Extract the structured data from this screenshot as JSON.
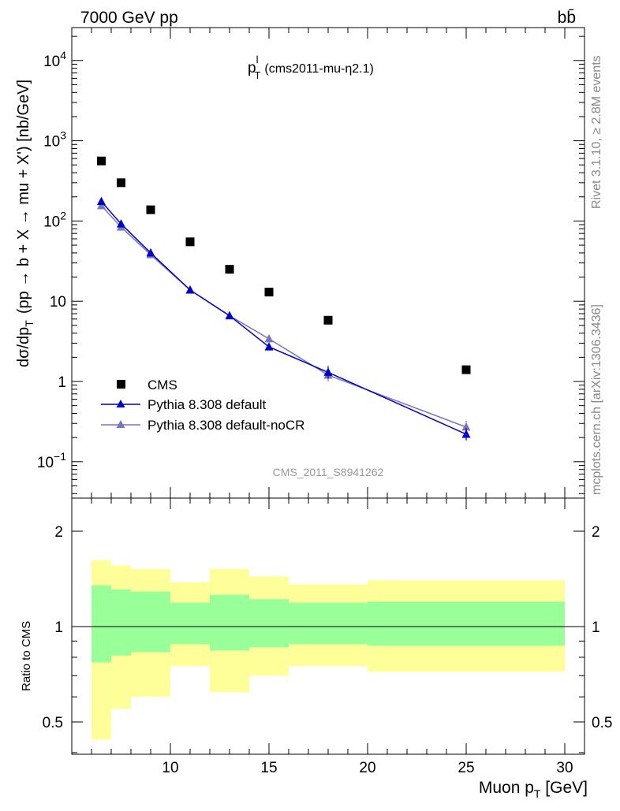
{
  "header": {
    "left": "7000 GeV pp",
    "right": "bb̄"
  },
  "side": {
    "rivet": "Rivet 3.1.10, ≥ 2.8M events",
    "mcplots": "mcplots.cern.ch [arXiv:1306.3436]"
  },
  "main_plot": {
    "title_base": "p",
    "title_sup": "l",
    "title_sub": "T",
    "title_paren": "(cms2011-mu-η2.1)",
    "ylabel_pre": "dσ/dp",
    "ylabel_sub": "T",
    "ylabel_post": "(pp → b + X → mu + X') [nb/GeV]",
    "analysis_id": "CMS_2011_S8941262"
  },
  "ratio_plot": {
    "ylabel": "Ratio to CMS"
  },
  "xlabel": {
    "pre": "Muon p",
    "sub": "T",
    "post": " [GeV]"
  },
  "legend": {
    "cms": "CMS",
    "default": "Pythia 8.308 default",
    "nocr": "Pythia 8.308 default-noCR"
  },
  "colors": {
    "data": "#000000",
    "default": "#0000cc",
    "nocr": "#7777bb",
    "band_inner": "#99ff99",
    "band_outer": "#ffff99",
    "analysis_text": "#999999"
  },
  "chart_data": [
    {
      "type": "scatter",
      "title": "p_T^l (cms2011-mu-η2.1)",
      "xlabel": "Muon p_T [GeV]",
      "ylabel": "dσ/dp_T (pp → b + X → mu + X') [nb/GeV]",
      "xlim": [
        5,
        31
      ],
      "ylim": [
        0.03,
        25000
      ],
      "yscale": "log",
      "x_ticks": [
        "10",
        "15",
        "20",
        "25",
        "30"
      ],
      "y_ticks": [
        {
          "value": 0.1,
          "base": "10",
          "exp": "−1"
        },
        {
          "value": 1,
          "label": "1"
        },
        {
          "value": 10,
          "label": "10"
        },
        {
          "value": 100,
          "base": "10",
          "exp": "2"
        },
        {
          "value": 1000,
          "base": "10",
          "exp": "3"
        },
        {
          "value": 10000,
          "base": "10",
          "exp": "4"
        }
      ],
      "legend_position": "bottom-left",
      "series": [
        {
          "name": "CMS",
          "style": "square",
          "x": [
            6.5,
            7.5,
            9,
            11,
            13,
            15,
            18,
            25
          ],
          "y": [
            560,
            300,
            138,
            55,
            25,
            13,
            5.8,
            1.4
          ]
        },
        {
          "name": "Pythia 8.308 default",
          "style": "line-triangle",
          "x": [
            6.5,
            7.5,
            9,
            11,
            13,
            15,
            18,
            25
          ],
          "y": [
            175,
            92,
            40,
            13.8,
            6.6,
            2.7,
            1.3,
            0.22
          ]
        },
        {
          "name": "Pythia 8.308 default-noCR",
          "style": "line-triangle",
          "x": [
            6.5,
            7.5,
            9,
            11,
            13,
            15,
            18,
            25
          ],
          "y": [
            155,
            84,
            38,
            13.8,
            6.6,
            3.4,
            1.2,
            0.27
          ]
        }
      ]
    },
    {
      "type": "area",
      "ylabel": "Ratio to CMS",
      "xlim": [
        5,
        31
      ],
      "ylim": [
        0.4,
        2.3
      ],
      "yscale": "log",
      "y_ticks": [
        "0.5",
        "1",
        "2"
      ],
      "reference_line": 1,
      "bins": [
        {
          "x0": 6,
          "x1": 7,
          "inner": [
            0.77,
            1.35
          ],
          "outer": [
            0.44,
            1.62
          ]
        },
        {
          "x0": 7,
          "x1": 8,
          "inner": [
            0.81,
            1.31
          ],
          "outer": [
            0.55,
            1.56
          ]
        },
        {
          "x0": 8,
          "x1": 10,
          "inner": [
            0.83,
            1.29
          ],
          "outer": [
            0.6,
            1.52
          ]
        },
        {
          "x0": 10,
          "x1": 12,
          "inner": [
            0.88,
            1.19
          ],
          "outer": [
            0.75,
            1.38
          ]
        },
        {
          "x0": 12,
          "x1": 14,
          "inner": [
            0.84,
            1.26
          ],
          "outer": [
            0.62,
            1.52
          ]
        },
        {
          "x0": 14,
          "x1": 16,
          "inner": [
            0.86,
            1.22
          ],
          "outer": [
            0.7,
            1.44
          ]
        },
        {
          "x0": 16,
          "x1": 20,
          "inner": [
            0.88,
            1.19
          ],
          "outer": [
            0.75,
            1.36
          ]
        },
        {
          "x0": 20,
          "x1": 30,
          "inner": [
            0.87,
            1.2
          ],
          "outer": [
            0.72,
            1.4
          ]
        }
      ]
    }
  ]
}
